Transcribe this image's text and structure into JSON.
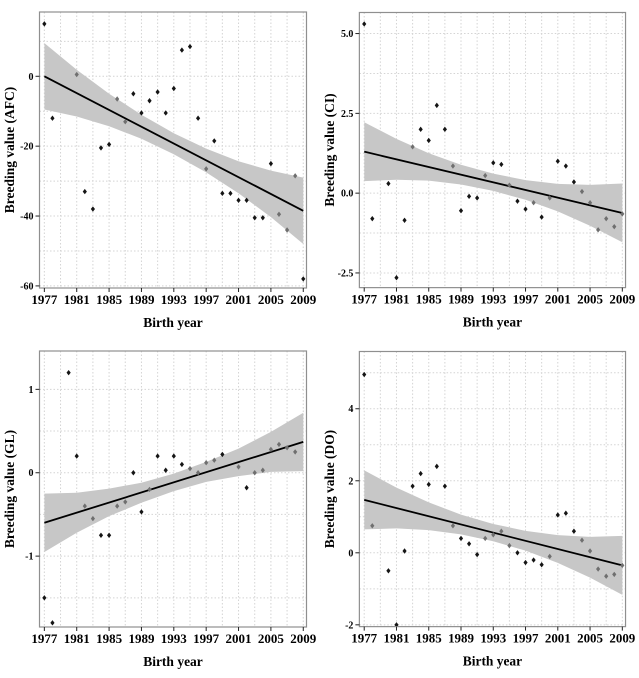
{
  "figure": {
    "title": "",
    "xlabel": "Birth year",
    "colors": {
      "background": "#ffffff",
      "band": "#c7c7c7",
      "trend": "#000000",
      "point": "#151515",
      "point_in_band": "#6f6f6f",
      "grid": "#d4d4d4",
      "border": "#8f8f8f",
      "text": "#000000"
    }
  },
  "chart_data": [
    {
      "type": "scatter",
      "id": "afc",
      "title": "",
      "xlabel": "Birth year",
      "ylabel": "Breeding value (AFC)",
      "legend": "none",
      "grid": "dotted",
      "xlim": [
        1976.4,
        2009.4
      ],
      "ylim": [
        -60.6,
        18.4
      ],
      "xticks": [
        1977,
        1981,
        1985,
        1989,
        1993,
        1997,
        2001,
        2005,
        2009
      ],
      "yticks": {
        "values": [
          0,
          -20,
          -40,
          -60
        ],
        "labels": [
          "0",
          "-20",
          "-40",
          "-60"
        ]
      },
      "points": [
        [
          1977,
          15
        ],
        [
          1978,
          -12
        ],
        [
          1981,
          0.5
        ],
        [
          1982,
          -33
        ],
        [
          1983,
          -38
        ],
        [
          1984,
          -20.5
        ],
        [
          1985,
          -19.5
        ],
        [
          1986,
          -6.5
        ],
        [
          1987,
          -13
        ],
        [
          1988,
          -5
        ],
        [
          1989,
          -10.5
        ],
        [
          1990,
          -7
        ],
        [
          1991,
          -4.5
        ],
        [
          1992,
          -10.5
        ],
        [
          1993,
          -3.5
        ],
        [
          1994,
          7.5
        ],
        [
          1995,
          8.5
        ],
        [
          1996,
          -12
        ],
        [
          1997,
          -26.5
        ],
        [
          1998,
          -18.5
        ],
        [
          1999,
          -33.5
        ],
        [
          2000,
          -33.5
        ],
        [
          2001,
          -35.5
        ],
        [
          2002,
          -35.5
        ],
        [
          2003,
          -40.5
        ],
        [
          2004,
          -40.5
        ],
        [
          2005,
          -25
        ],
        [
          2006,
          -39.5
        ],
        [
          2007,
          -44
        ],
        [
          2008,
          -28.5
        ],
        [
          2009,
          -58
        ]
      ],
      "trend": {
        "x": [
          1977,
          2009
        ],
        "y": [
          0,
          -38.5
        ]
      },
      "band": {
        "x": [
          1977,
          1981,
          1985,
          1989,
          1993,
          1997,
          2001,
          2005,
          2009
        ],
        "upper": [
          9.5,
          1.85,
          -5.0,
          -11.0,
          -16.3,
          -20.7,
          -24.3,
          -27.0,
          -29.0
        ],
        "lower": [
          -9.5,
          -11.5,
          -14.3,
          -17.9,
          -22.3,
          -27.5,
          -33.5,
          -40.3,
          -48.0
        ]
      }
    },
    {
      "type": "scatter",
      "id": "ci",
      "title": "",
      "xlabel": "Birth year",
      "ylabel": "Breeding value (CI)",
      "legend": "none",
      "grid": "dotted",
      "xlim": [
        1976.4,
        2009.4
      ],
      "ylim": [
        -2.96,
        5.66
      ],
      "xticks": [
        1977,
        1981,
        1985,
        1989,
        1993,
        1997,
        2001,
        2005,
        2009
      ],
      "yticks": {
        "values": [
          5.0,
          2.5,
          0.0,
          -2.5
        ],
        "labels": [
          "5.0",
          "2.5",
          "0.0",
          "-2.5"
        ]
      },
      "points": [
        [
          1977,
          5.3
        ],
        [
          1978,
          -0.8
        ],
        [
          1980,
          0.3
        ],
        [
          1981,
          -2.65
        ],
        [
          1982,
          -0.85
        ],
        [
          1983,
          1.45
        ],
        [
          1984,
          2.0
        ],
        [
          1985,
          1.65
        ],
        [
          1986,
          2.75
        ],
        [
          1987,
          2.0
        ],
        [
          1988,
          0.85
        ],
        [
          1989,
          -0.55
        ],
        [
          1990,
          -0.1
        ],
        [
          1991,
          -0.15
        ],
        [
          1992,
          0.55
        ],
        [
          1993,
          0.95
        ],
        [
          1994,
          0.9
        ],
        [
          1995,
          0.25
        ],
        [
          1996,
          -0.25
        ],
        [
          1997,
          -0.5
        ],
        [
          1998,
          -0.3
        ],
        [
          1999,
          -0.75
        ],
        [
          2000,
          -0.15
        ],
        [
          2001,
          1.0
        ],
        [
          2002,
          0.85
        ],
        [
          2003,
          0.35
        ],
        [
          2004,
          0.05
        ],
        [
          2005,
          -0.3
        ],
        [
          2006,
          -1.15
        ],
        [
          2007,
          -0.8
        ],
        [
          2008,
          -1.05
        ],
        [
          2009,
          -0.65
        ]
      ],
      "trend": {
        "x": [
          1977,
          2009
        ],
        "y": [
          1.3,
          -0.62
        ]
      },
      "band": {
        "x": [
          1977,
          1981,
          1985,
          1989,
          1993,
          1997,
          2001,
          2005,
          2009
        ],
        "upper": [
          2.22,
          1.7,
          1.25,
          0.89,
          0.61,
          0.41,
          0.29,
          0.26,
          0.3
        ],
        "lower": [
          0.38,
          0.42,
          0.39,
          0.27,
          0.07,
          -0.21,
          -0.57,
          -1.02,
          -1.54
        ]
      }
    },
    {
      "type": "scatter",
      "id": "gl",
      "title": "",
      "xlabel": "Birth year",
      "ylabel": "Breeding value (GL)",
      "legend": "none",
      "grid": "dotted",
      "xlim": [
        1976.4,
        2009.4
      ],
      "ylim": [
        -1.85,
        1.46
      ],
      "xticks": [
        1977,
        1981,
        1985,
        1989,
        1993,
        1997,
        2001,
        2005,
        2009
      ],
      "yticks": {
        "values": [
          1,
          0,
          -1
        ],
        "labels": [
          "1",
          "0",
          "-1"
        ]
      },
      "points": [
        [
          1977,
          -1.5
        ],
        [
          1978,
          -1.8
        ],
        [
          1980,
          1.2
        ],
        [
          1981,
          0.2
        ],
        [
          1982,
          -0.4
        ],
        [
          1983,
          -0.55
        ],
        [
          1984,
          -0.75
        ],
        [
          1985,
          -0.75
        ],
        [
          1986,
          -0.4
        ],
        [
          1987,
          -0.35
        ],
        [
          1988,
          0.0
        ],
        [
          1989,
          -0.47
        ],
        [
          1990,
          -0.2
        ],
        [
          1991,
          0.2
        ],
        [
          1992,
          0.03
        ],
        [
          1993,
          0.2
        ],
        [
          1994,
          0.1
        ],
        [
          1995,
          0.05
        ],
        [
          1996,
          0.0
        ],
        [
          1997,
          0.12
        ],
        [
          1998,
          0.15
        ],
        [
          1999,
          0.22
        ],
        [
          2001,
          0.07
        ],
        [
          2002,
          -0.18
        ],
        [
          2003,
          0.0
        ],
        [
          2004,
          0.03
        ],
        [
          2005,
          0.28
        ],
        [
          2006,
          0.34
        ],
        [
          2007,
          0.3
        ],
        [
          2008,
          0.25
        ]
      ],
      "trend": {
        "x": [
          1977,
          2009
        ],
        "y": [
          -0.6,
          0.37
        ]
      },
      "band": {
        "x": [
          1977,
          1981,
          1985,
          1989,
          1993,
          1997,
          2001,
          2005,
          2009
        ],
        "upper": [
          -0.25,
          -0.24,
          -0.19,
          -0.12,
          -0.01,
          0.13,
          0.29,
          0.49,
          0.72
        ],
        "lower": [
          -0.95,
          -0.72,
          -0.52,
          -0.36,
          -0.22,
          -0.11,
          -0.04,
          0.01,
          0.02
        ]
      }
    },
    {
      "type": "scatter",
      "id": "do",
      "title": "",
      "xlabel": "Birth year",
      "ylabel": "Breeding value (DO)",
      "legend": "none",
      "grid": "dotted",
      "xlim": [
        1976.4,
        2009.4
      ],
      "ylim": [
        -2.05,
        5.59
      ],
      "xticks": [
        1977,
        1981,
        1985,
        1989,
        1993,
        1997,
        2001,
        2005,
        2009
      ],
      "yticks": {
        "values": [
          4,
          2,
          0,
          -2
        ],
        "labels": [
          "4",
          "2",
          "0",
          "-2"
        ]
      },
      "points": [
        [
          1977,
          4.95
        ],
        [
          1978,
          0.75
        ],
        [
          1980,
          -0.5
        ],
        [
          1981,
          -2.0
        ],
        [
          1982,
          0.05
        ],
        [
          1983,
          1.85
        ],
        [
          1984,
          2.2
        ],
        [
          1985,
          1.9
        ],
        [
          1986,
          2.4
        ],
        [
          1987,
          1.85
        ],
        [
          1988,
          0.75
        ],
        [
          1989,
          0.4
        ],
        [
          1990,
          0.25
        ],
        [
          1991,
          -0.05
        ],
        [
          1992,
          0.4
        ],
        [
          1993,
          0.5
        ],
        [
          1994,
          0.6
        ],
        [
          1995,
          0.2
        ],
        [
          1996,
          0.0
        ],
        [
          1997,
          -0.27
        ],
        [
          1998,
          -0.2
        ],
        [
          1999,
          -0.33
        ],
        [
          2000,
          -0.1
        ],
        [
          2001,
          1.05
        ],
        [
          2002,
          1.1
        ],
        [
          2003,
          0.6
        ],
        [
          2004,
          0.35
        ],
        [
          2005,
          0.05
        ],
        [
          2006,
          -0.45
        ],
        [
          2007,
          -0.65
        ],
        [
          2008,
          -0.6
        ],
        [
          2009,
          -0.35
        ]
      ],
      "trend": {
        "x": [
          1977,
          2009
        ],
        "y": [
          1.47,
          -0.35
        ]
      },
      "band": {
        "x": [
          1977,
          1981,
          1985,
          1989,
          1993,
          1997,
          2001,
          2005,
          2009
        ],
        "upper": [
          2.29,
          1.81,
          1.4,
          1.06,
          0.8,
          0.61,
          0.49,
          0.44,
          0.47
        ],
        "lower": [
          0.65,
          0.68,
          0.63,
          0.51,
          0.32,
          0.06,
          -0.28,
          -0.69,
          -1.17
        ]
      }
    }
  ]
}
